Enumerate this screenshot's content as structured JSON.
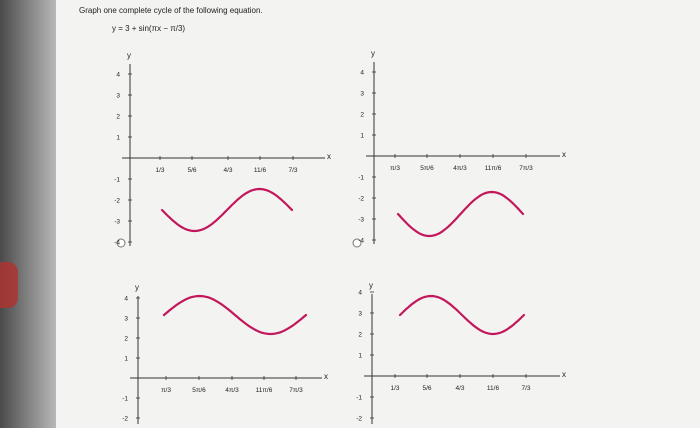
{
  "question": {
    "prompt": "Graph one complete cycle of the following equation.",
    "equation": "y = 3 + sin(πx − π/3)"
  },
  "axis_labels": {
    "x": "x",
    "y": "y"
  },
  "ticks": {
    "y_top_panels": [
      "4",
      "3",
      "2",
      "1",
      "-1",
      "-2",
      "-3",
      "-4"
    ],
    "y_bottom_panels": [
      "4",
      "3",
      "2",
      "1",
      "-1",
      "-2"
    ],
    "x_pi": [
      "π/3",
      "5π/6",
      "4π/3",
      "11π/6",
      "7π/3"
    ],
    "x_plain": [
      "1/3",
      "5/6",
      "4/3",
      "11/6",
      "7/3"
    ]
  },
  "options": [
    {
      "id": "A",
      "x_ticks": "plain",
      "y_ticks": "top",
      "curve": "trough-first"
    },
    {
      "id": "B",
      "x_ticks": "pi",
      "y_ticks": "top",
      "curve": "trough-first"
    },
    {
      "id": "C",
      "x_ticks": "pi",
      "y_ticks": "bottom",
      "curve": "peak-first"
    },
    {
      "id": "D",
      "x_ticks": "plain",
      "y_ticks": "bottom",
      "curve": "peak-first"
    }
  ],
  "colors": {
    "curve": "#c2185b",
    "axes": "#333333",
    "paper": "#f3f3f2"
  }
}
